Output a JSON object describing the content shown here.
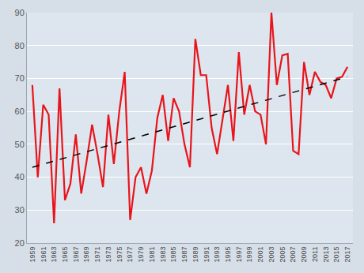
{
  "chart_data": {
    "type": "line",
    "x": [
      1959,
      1960,
      1961,
      1962,
      1963,
      1964,
      1965,
      1966,
      1967,
      1968,
      1969,
      1970,
      1971,
      1972,
      1973,
      1974,
      1975,
      1976,
      1977,
      1978,
      1979,
      1980,
      1981,
      1982,
      1983,
      1984,
      1985,
      1986,
      1987,
      1988,
      1989,
      1990,
      1991,
      1992,
      1993,
      1994,
      1995,
      1996,
      1997,
      1998,
      1999,
      2000,
      2001,
      2002,
      2003,
      2004,
      2005,
      2006,
      2007,
      2008,
      2009,
      2010,
      2011,
      2012,
      2013,
      2014,
      2015,
      2016,
      2017
    ],
    "series": [
      {
        "type": "line",
        "color": "#e8141c",
        "line_style": "solid",
        "values": [
          68,
          40,
          62,
          59,
          26,
          67,
          33,
          38,
          53,
          35,
          45,
          56,
          47,
          37,
          59,
          44,
          60,
          72,
          27,
          40,
          43,
          35,
          42,
          58,
          65,
          51,
          64,
          60,
          50,
          43,
          82,
          71,
          71,
          55,
          47,
          57,
          68,
          51,
          78,
          59,
          68,
          60,
          59,
          50,
          90,
          68,
          77,
          77.5,
          48,
          47,
          75,
          65,
          72,
          69,
          68,
          64,
          70,
          70.5,
          73.5
        ]
      },
      {
        "type": "line",
        "color": "#000000",
        "line_style": "dashed",
        "x": [
          1959,
          2017
        ],
        "values": [
          43,
          70.5
        ]
      }
    ],
    "xlim": [
      1958,
      2018
    ],
    "xticks": [
      1959,
      1961,
      1963,
      1965,
      1967,
      1969,
      1971,
      1973,
      1975,
      1977,
      1979,
      1981,
      1983,
      1985,
      1987,
      1989,
      1991,
      1993,
      1995,
      1997,
      1999,
      2001,
      2003,
      2005,
      2007,
      2009,
      2011,
      2013,
      2015,
      2017
    ],
    "ylim": [
      20,
      90
    ],
    "yticks": [
      20,
      30,
      40,
      50,
      60,
      70,
      80,
      90
    ],
    "grid": true
  }
}
